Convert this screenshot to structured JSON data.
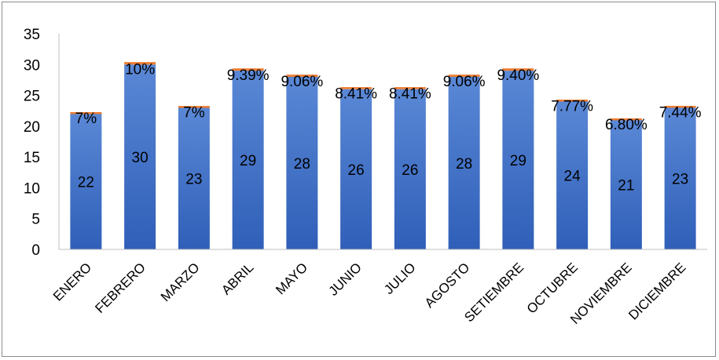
{
  "chart_data": {
    "type": "bar",
    "stacked": true,
    "title": "",
    "xlabel": "",
    "ylabel": "",
    "ylim": [
      0,
      35
    ],
    "yticks": [
      0,
      5,
      10,
      15,
      20,
      25,
      30,
      35
    ],
    "grid": false,
    "legend": "none",
    "categories": [
      "ENERO",
      "FEBRERO",
      "MARZO",
      "ABRIL",
      "MAYO",
      "JUNIO",
      "JULIO",
      "AGOSTO",
      "SETIEMBRE",
      "OCTUBRE",
      "NOVIEMBRE",
      "DICIEMBRE"
    ],
    "series": [
      {
        "values": [
          22,
          30,
          23,
          29,
          28,
          26,
          26,
          28,
          29,
          24,
          21,
          23
        ],
        "labels": [
          "22",
          "30",
          "23",
          "29",
          "28",
          "26",
          "26",
          "28",
          "29",
          "24",
          "21",
          "23"
        ],
        "color": "#4472c4"
      },
      {
        "values": [
          0.07,
          0.1,
          0.07,
          0.0939,
          0.0906,
          0.0841,
          0.0841,
          0.0906,
          0.094,
          0.0777,
          0.068,
          0.0744
        ],
        "labels": [
          "7%",
          "10%",
          "7%",
          "9.39%",
          "9.06%",
          "8.41%",
          "8.41%",
          "9.06%",
          "9.40%",
          "7.77%",
          "6.80%",
          "7.44%"
        ],
        "color": "#ed7d31"
      }
    ]
  }
}
